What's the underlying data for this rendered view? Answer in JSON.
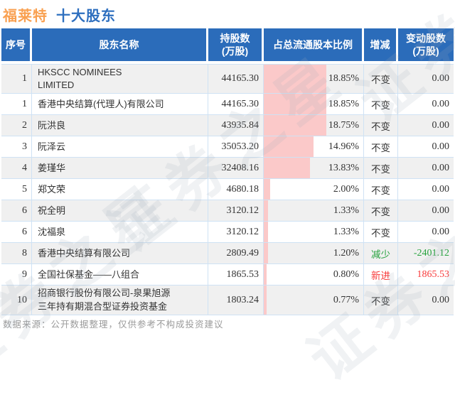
{
  "title": {
    "stock": "福莱特",
    "suffix": "十大股东"
  },
  "watermark": {
    "text": "证券之星"
  },
  "footer": {
    "source_note": "数据来源：公开数据整理，仅供参考不构成投资建议"
  },
  "colors": {
    "header_bg": "#2b6cba",
    "title_stock": "#f9a050",
    "title_suffix": "#2e6fbf",
    "zebra_row": "#f0f0f0",
    "grid_line": "#cfe2f4",
    "pct_bar": "#fbc9c9",
    "decrease_green": "#27a23e",
    "new_red": "#f83b3b",
    "footer_gray": "#9a9a9a"
  },
  "table": {
    "headers": [
      "序号",
      "股东名称",
      "持股数\n(万股)",
      "占总流通股本比例",
      "增减",
      "变动股数\n(万股)"
    ],
    "bar_scale_max_pct": 30,
    "rows": [
      {
        "num": "1",
        "name": "HKSCC NOMINEES\nLIMITED",
        "shares": "44165.30",
        "pct": "18.85%",
        "change": "不变",
        "change_shares": "0.00",
        "change_type": "none"
      },
      {
        "num": "1",
        "name": "香港中央结算(代理人)有限公司",
        "shares": "44165.30",
        "pct": "18.85%",
        "change": "不变",
        "change_shares": "0.00",
        "change_type": "none"
      },
      {
        "num": "2",
        "name": "阮洪良",
        "shares": "43935.84",
        "pct": "18.75%",
        "change": "不变",
        "change_shares": "0.00",
        "change_type": "none"
      },
      {
        "num": "3",
        "name": "阮泽云",
        "shares": "35053.20",
        "pct": "14.96%",
        "change": "不变",
        "change_shares": "0.00",
        "change_type": "none"
      },
      {
        "num": "4",
        "name": "姜瑾华",
        "shares": "32408.16",
        "pct": "13.83%",
        "change": "不变",
        "change_shares": "0.00",
        "change_type": "none"
      },
      {
        "num": "5",
        "name": "郑文荣",
        "shares": "4680.18",
        "pct": "2.00%",
        "change": "不变",
        "change_shares": "0.00",
        "change_type": "none"
      },
      {
        "num": "6",
        "name": "祝全明",
        "shares": "3120.12",
        "pct": "1.33%",
        "change": "不变",
        "change_shares": "0.00",
        "change_type": "none"
      },
      {
        "num": "6",
        "name": "沈福泉",
        "shares": "3120.12",
        "pct": "1.33%",
        "change": "不变",
        "change_shares": "0.00",
        "change_type": "none"
      },
      {
        "num": "8",
        "name": "香港中央结算有限公司",
        "shares": "2809.49",
        "pct": "1.20%",
        "change": "减少",
        "change_shares": "-2401.12",
        "change_type": "decrease"
      },
      {
        "num": "9",
        "name": "全国社保基金——八组合",
        "shares": "1865.53",
        "pct": "0.80%",
        "change": "新进",
        "change_shares": "1865.53",
        "change_type": "new"
      },
      {
        "num": "10",
        "name": "招商银行股份有限公司-泉果旭源\n三年持有期混合型证券投资基金",
        "shares": "1803.24",
        "pct": "0.77%",
        "change": "不变",
        "change_shares": "0.00",
        "change_type": "none"
      }
    ]
  },
  "chart_data": {
    "type": "table",
    "title": "福莱特 十大股东",
    "columns": [
      "序号",
      "股东名称",
      "持股数(万股)",
      "占总流通股本比例",
      "增减",
      "变动股数(万股)"
    ],
    "rows": [
      [
        "1",
        "HKSCC NOMINEES LIMITED",
        44165.3,
        "18.85%",
        "不变",
        0.0
      ],
      [
        "1",
        "香港中央结算(代理人)有限公司",
        44165.3,
        "18.85%",
        "不变",
        0.0
      ],
      [
        "2",
        "阮洪良",
        43935.84,
        "18.75%",
        "不变",
        0.0
      ],
      [
        "3",
        "阮泽云",
        35053.2,
        "14.96%",
        "不变",
        0.0
      ],
      [
        "4",
        "姜瑾华",
        32408.16,
        "13.83%",
        "不变",
        0.0
      ],
      [
        "5",
        "郑文荣",
        4680.18,
        "2.00%",
        "不变",
        0.0
      ],
      [
        "6",
        "祝全明",
        3120.12,
        "1.33%",
        "不变",
        0.0
      ],
      [
        "6",
        "沈福泉",
        3120.12,
        "1.33%",
        "不变",
        0.0
      ],
      [
        "8",
        "香港中央结算有限公司",
        2809.49,
        "1.20%",
        "减少",
        -2401.12
      ],
      [
        "9",
        "全国社保基金——八组合",
        1865.53,
        "0.80%",
        "新进",
        1865.53
      ],
      [
        "10",
        "招商银行股份有限公司-泉果旭源三年持有期混合型证券投资基金",
        1803.24,
        "0.77%",
        "不变",
        0.0
      ]
    ],
    "embedded_bar": {
      "column": "占总流通股本比例",
      "axis_max_pct": 30,
      "color": "#fbc9c9"
    }
  }
}
